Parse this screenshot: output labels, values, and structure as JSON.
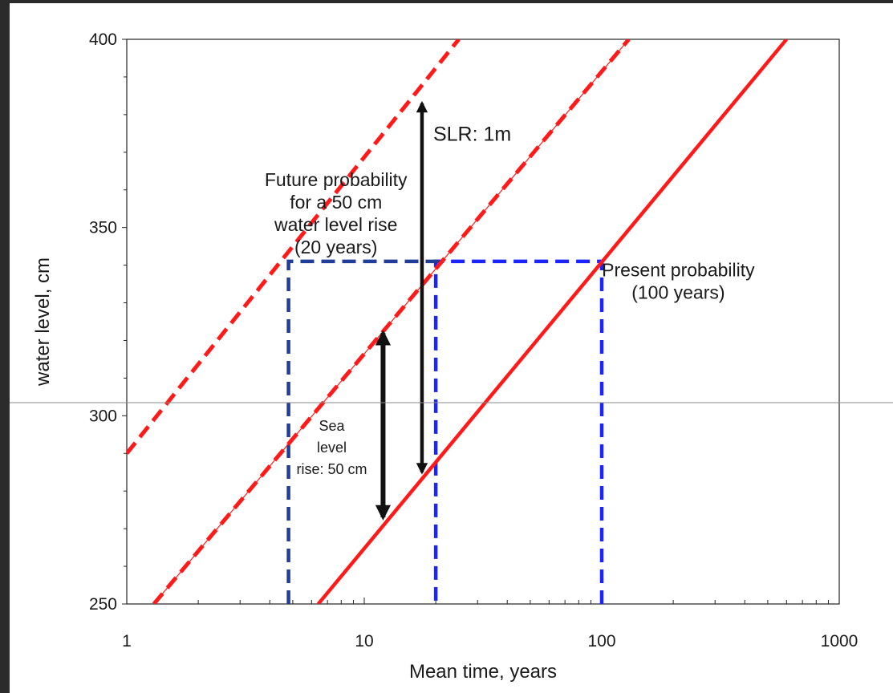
{
  "colors": {
    "frame": "#2b2b2b",
    "red": "#ff1a1a",
    "navy": "#1f3d99",
    "blue": "#1a24ff",
    "black": "#111111",
    "divider": "#8a8a8a"
  },
  "chart_data": {
    "type": "line",
    "xlabel": "Mean time, years",
    "ylabel": "water level, cm",
    "x_scale": "log",
    "xlim": [
      1,
      1000
    ],
    "ylim": [
      250,
      400
    ],
    "x_ticks": [
      "1",
      "10",
      "100",
      "1000"
    ],
    "y_ticks": [
      "250",
      "300",
      "350",
      "400"
    ],
    "grid": false,
    "legend": "none",
    "series": [
      {
        "style": "solid",
        "color": "red",
        "x": [
          6.4,
          600
        ],
        "y": [
          250,
          400
        ]
      },
      {
        "style": "dashed",
        "color": "red",
        "x": [
          1.3,
          130
        ],
        "y": [
          250,
          400
        ]
      },
      {
        "style": "dashed",
        "color": "red",
        "x": [
          1,
          25
        ],
        "y": [
          290,
          400
        ]
      }
    ],
    "reference_lines": [
      {
        "style": "dashed",
        "color": "blue",
        "points": [
          [
            100,
            250
          ],
          [
            100,
            341
          ],
          [
            20,
            341
          ],
          [
            20,
            250
          ]
        ]
      },
      {
        "style": "dashed",
        "color": "navy",
        "points": [
          [
            4.8,
            250
          ],
          [
            4.8,
            341
          ],
          [
            22,
            341
          ]
        ]
      }
    ],
    "arrows": [
      {
        "x": 12,
        "y_from": 273,
        "y_to": 322,
        "double": true
      },
      {
        "x": 17.5,
        "y_from": 285,
        "y_to": 383,
        "double": true
      }
    ],
    "annotations": [
      {
        "id": "slr",
        "text": [
          "SLR: 1m"
        ],
        "x": 17.5,
        "y": 373
      },
      {
        "id": "future",
        "text": [
          "Future probability",
          "for a 50 cm",
          "water level rise",
          "(20 years)"
        ],
        "x": 7.6,
        "y": 361
      },
      {
        "id": "present",
        "text": [
          "Present probability",
          "(100 years)"
        ],
        "x": 210,
        "y": 337
      },
      {
        "id": "sea",
        "text": [
          "Sea",
          "level",
          "rise: 50 cm"
        ],
        "x": 7.3,
        "y": 296
      }
    ]
  }
}
